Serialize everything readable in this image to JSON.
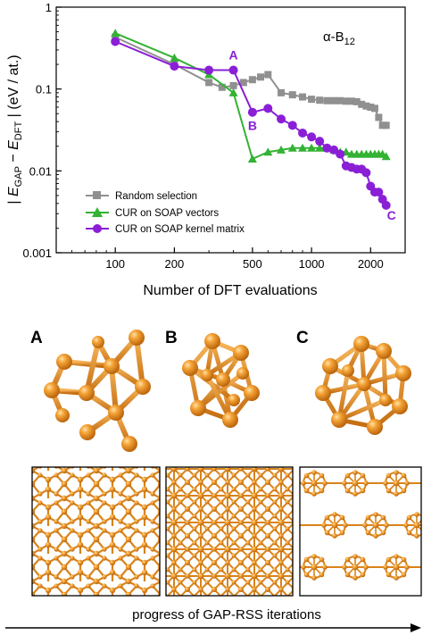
{
  "chart_data": {
    "type": "line",
    "title": "α-B12",
    "xlabel": "Number of DFT evaluations",
    "ylabel": "| E_GAP − E_DFT | (eV / at.)",
    "x_scale": "log",
    "y_scale": "log",
    "xlim": [
      50,
      3000
    ],
    "ylim": [
      0.001,
      1
    ],
    "x_ticks": [
      100,
      200,
      500,
      1000,
      2000
    ],
    "x_tick_labels": [
      "100",
      "200",
      "500",
      "1000",
      "2000"
    ],
    "y_ticks": [
      0.001,
      0.01,
      0.1,
      1
    ],
    "y_tick_labels": [
      "0.001",
      "0.01",
      "0.1",
      "1"
    ],
    "legend_position": "lower-left",
    "series": [
      {
        "name": "Random selection",
        "color": "#909090",
        "marker": "square",
        "points": [
          [
            100,
            0.43
          ],
          [
            200,
            0.2
          ],
          [
            300,
            0.12
          ],
          [
            350,
            0.105
          ],
          [
            400,
            0.11
          ],
          [
            450,
            0.12
          ],
          [
            500,
            0.13
          ],
          [
            550,
            0.14
          ],
          [
            600,
            0.15
          ],
          [
            700,
            0.09
          ],
          [
            800,
            0.085
          ],
          [
            900,
            0.08
          ],
          [
            1000,
            0.075
          ],
          [
            1100,
            0.073
          ],
          [
            1200,
            0.072
          ],
          [
            1300,
            0.072
          ],
          [
            1400,
            0.072
          ],
          [
            1500,
            0.071
          ],
          [
            1600,
            0.071
          ],
          [
            1700,
            0.07
          ],
          [
            1800,
            0.065
          ],
          [
            1900,
            0.062
          ],
          [
            2000,
            0.06
          ],
          [
            2100,
            0.058
          ],
          [
            2200,
            0.045
          ],
          [
            2300,
            0.036
          ],
          [
            2400,
            0.036
          ]
        ]
      },
      {
        "name": "CUR on SOAP vectors",
        "color": "#33b233",
        "marker": "triangle",
        "points": [
          [
            100,
            0.48
          ],
          [
            200,
            0.24
          ],
          [
            300,
            0.15
          ],
          [
            400,
            0.09
          ],
          [
            500,
            0.014
          ],
          [
            600,
            0.017
          ],
          [
            700,
            0.018
          ],
          [
            800,
            0.019
          ],
          [
            900,
            0.019
          ],
          [
            1000,
            0.019
          ],
          [
            1100,
            0.019
          ],
          [
            1200,
            0.019
          ],
          [
            1300,
            0.018
          ],
          [
            1400,
            0.017
          ],
          [
            1500,
            0.017
          ],
          [
            1600,
            0.016
          ],
          [
            1700,
            0.016
          ],
          [
            1800,
            0.016
          ],
          [
            1900,
            0.016
          ],
          [
            2000,
            0.016
          ],
          [
            2100,
            0.016
          ],
          [
            2200,
            0.016
          ],
          [
            2300,
            0.016
          ],
          [
            2400,
            0.015
          ]
        ]
      },
      {
        "name": "CUR on SOAP kernel matrix",
        "color": "#8a1fd6",
        "marker": "circle",
        "points": [
          [
            100,
            0.38
          ],
          [
            200,
            0.19
          ],
          [
            300,
            0.17
          ],
          [
            400,
            0.17
          ],
          [
            500,
            0.052
          ],
          [
            600,
            0.058
          ],
          [
            700,
            0.043
          ],
          [
            800,
            0.036
          ],
          [
            900,
            0.029
          ],
          [
            1000,
            0.026
          ],
          [
            1100,
            0.023
          ],
          [
            1200,
            0.019
          ],
          [
            1300,
            0.018
          ],
          [
            1400,
            0.016
          ],
          [
            1500,
            0.0115
          ],
          [
            1600,
            0.011
          ],
          [
            1700,
            0.0105
          ],
          [
            1800,
            0.0105
          ],
          [
            1900,
            0.0095
          ],
          [
            2000,
            0.0065
          ],
          [
            2100,
            0.0055
          ],
          [
            2200,
            0.0055
          ],
          [
            2300,
            0.0045
          ],
          [
            2400,
            0.0038
          ]
        ]
      }
    ],
    "annotations": [
      {
        "text": "A",
        "x": 400,
        "y": 0.17,
        "color": "#8a1fd6"
      },
      {
        "text": "B",
        "x": 500,
        "y": 0.052,
        "color": "#8a1fd6"
      },
      {
        "text": "C",
        "x": 2400,
        "y": 0.0038,
        "color": "#8a1fd6"
      }
    ]
  },
  "panels": {
    "labels": [
      "A",
      "B",
      "C"
    ],
    "atom_color": "#e8901c"
  },
  "arrow_caption": "progress of GAP-RSS iterations"
}
